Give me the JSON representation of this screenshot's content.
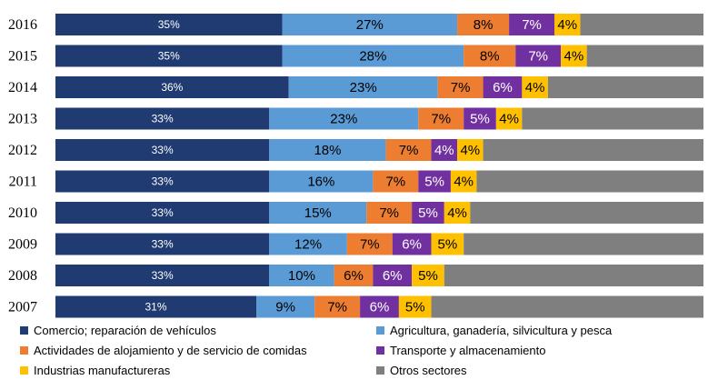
{
  "chart_data": {
    "type": "bar",
    "orientation": "horizontal",
    "stacked": true,
    "percent_scale": true,
    "categories": [
      "2016",
      "2015",
      "2014",
      "2013",
      "2012",
      "2011",
      "2010",
      "2009",
      "2008",
      "2007"
    ],
    "series": [
      {
        "name": "Comercio; reparación de vehículos",
        "color": "#1f3b72",
        "values": [
          35,
          35,
          36,
          33,
          33,
          33,
          33,
          33,
          33,
          31
        ],
        "labels": [
          "35%",
          "35%",
          "36%",
          "33%",
          "33%",
          "33%",
          "33%",
          "33%",
          "33%",
          "31%"
        ]
      },
      {
        "name": "Agricultura, ganadería,  silvicultura y pesca",
        "color": "#5b9bd5",
        "values": [
          27,
          28,
          23,
          23,
          18,
          16,
          15,
          12,
          10,
          9
        ],
        "labels": [
          "27%",
          "28%",
          "23%",
          "23%",
          "18%",
          "16%",
          "15%",
          "12%",
          "10%",
          "9%"
        ]
      },
      {
        "name": "Actividades de alojamiento y de servicio de comidas",
        "color": "#ed7d31",
        "values": [
          8,
          8,
          7,
          7,
          7,
          7,
          7,
          7,
          6,
          7
        ],
        "labels": [
          "8%",
          "8%",
          "7%",
          "7%",
          "7%",
          "7%",
          "7%",
          "7%",
          "6%",
          "7%"
        ]
      },
      {
        "name": "Transporte y almacenamiento",
        "color": "#7030a0",
        "values": [
          7,
          7,
          6,
          5,
          4,
          5,
          5,
          6,
          6,
          6
        ],
        "labels": [
          "7%",
          "7%",
          "6%",
          "5%",
          "4%",
          "5%",
          "5%",
          "6%",
          "6%",
          "6%"
        ]
      },
      {
        "name": "Industrias manufactureras",
        "color": "#ffc000",
        "values": [
          4,
          4,
          4,
          4,
          4,
          4,
          4,
          5,
          5,
          5
        ],
        "labels": [
          "4%",
          "4%",
          "4%",
          "4%",
          "4%",
          "4%",
          "4%",
          "5%",
          "5%",
          "5%"
        ]
      },
      {
        "name": "Otros sectores",
        "color": "#7f7f7f",
        "values": [
          19,
          18,
          24,
          28,
          34,
          35,
          36,
          37,
          40,
          42
        ],
        "labels": [
          "",
          "",
          "",
          "",
          "",
          "",
          "",
          "",
          "",
          ""
        ]
      }
    ],
    "xlim": [
      0,
      100
    ],
    "grid": false,
    "legend_position": "bottom"
  }
}
